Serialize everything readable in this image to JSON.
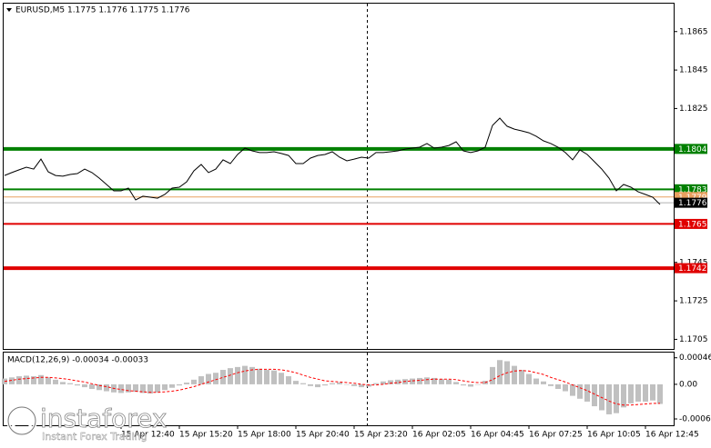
{
  "chart_data": [
    {
      "type": "line",
      "title": "EURUSD,M5  1.1775 1.1776 1.1775 1.1776",
      "categories": [
        null,
        null,
        null,
        null,
        null,
        null,
        null,
        null,
        null,
        null,
        null,
        null,
        null,
        null,
        null,
        null,
        "15 Apr 12:40",
        null,
        null,
        null,
        null,
        null,
        null,
        null,
        "15 Apr 15:20",
        null,
        null,
        null,
        null,
        null,
        null,
        null,
        "15 Apr 18:00",
        null,
        null,
        null,
        null,
        null,
        null,
        null,
        "15 Apr 20:40",
        null,
        null,
        null,
        null,
        null,
        null,
        null,
        "15 Apr 23:20",
        null,
        null,
        null,
        null,
        null,
        null,
        null,
        "16 Apr 02:05",
        null,
        null,
        null,
        null,
        null,
        null,
        null,
        "16 Apr 04:45",
        null,
        null,
        null,
        null,
        null,
        null,
        null,
        "16 Apr 07:25",
        null,
        null,
        null,
        null,
        null,
        null,
        null,
        "16 Apr 10:05",
        null,
        null,
        null,
        null,
        null,
        null,
        null,
        "16 Apr 12:45",
        null,
        null
      ],
      "series": [
        {
          "color": "#000000",
          "values": [
            1.17902,
            1.17917,
            1.17931,
            1.17945,
            1.17935,
            1.17987,
            1.17921,
            1.17902,
            1.17898,
            1.17907,
            1.17912,
            1.17935,
            1.17917,
            1.17888,
            1.17855,
            1.17822,
            1.17822,
            1.17836,
            1.17775,
            1.17794,
            1.17789,
            1.17784,
            1.17803,
            1.17836,
            1.17841,
            1.17869,
            1.17926,
            1.17959,
            1.17917,
            1.17935,
            1.17983,
            1.17964,
            1.18011,
            1.18044,
            1.1803,
            1.18021,
            1.18021,
            1.18025,
            1.18016,
            1.18006,
            1.17964,
            1.17964,
            1.17992,
            1.18006,
            1.18011,
            1.18025,
            1.17997,
            1.17978,
            1.17987,
            1.17997,
            1.17992,
            1.18021,
            1.18021,
            1.18025,
            1.1803,
            1.18039,
            1.18044,
            1.18049,
            1.18068,
            1.18044,
            1.18049,
            1.18058,
            1.18077,
            1.1803,
            1.18021,
            1.1803,
            1.18049,
            1.18162,
            1.182,
            1.18158,
            1.18143,
            1.18134,
            1.18124,
            1.18106,
            1.18082,
            1.18068,
            1.18049,
            1.18021,
            1.17983,
            1.18035,
            1.18011,
            1.17973,
            1.17935,
            1.17888,
            1.17822,
            1.17855,
            1.17841,
            1.17817,
            1.17803,
            1.17789,
            1.17751
          ]
        }
      ],
      "ylim": [
        1.17,
        1.188
      ],
      "yticks": [
        1.1865,
        1.1845,
        1.1825,
        1.1745,
        1.1725,
        1.1705
      ],
      "levels": [
        {
          "value": 1.1804,
          "color": "#008000",
          "label_color": "#008000"
        },
        {
          "value": 1.1783,
          "color": "#008000",
          "label_color": "#008000"
        },
        {
          "value": 1.1779,
          "color": "#e8a060",
          "label_color": "#e8a060"
        },
        {
          "value": 1.1776,
          "color": "#b0b0b0",
          "label_color": "#000000"
        },
        {
          "value": 1.1765,
          "color": "#e00000",
          "label_color": "#e00000"
        },
        {
          "value": 1.1742,
          "color": "#e00000",
          "label_color": "#e00000"
        }
      ]
    },
    {
      "type": "macd",
      "title": "MACD(12,26,9) -0.00034 -0.00033",
      "histogram": {
        "color": "#c0c0c0",
        "values": [
          0.0001,
          0.00012,
          0.00014,
          0.00015,
          0.00014,
          0.00016,
          0.00012,
          8e-05,
          4e-05,
          2e-05,
          -2e-05,
          -5e-05,
          -8e-05,
          -0.0001,
          -0.00012,
          -0.00014,
          -0.00015,
          -0.00014,
          -0.00013,
          -0.00015,
          -0.00016,
          -0.00014,
          -0.0001,
          -6e-05,
          -2e-05,
          3e-05,
          8e-05,
          0.00014,
          0.00018,
          0.0002,
          0.00025,
          0.00028,
          0.0003,
          0.00032,
          0.0003,
          0.00027,
          0.00025,
          0.00024,
          0.0002,
          0.00014,
          6e-05,
          2e-05,
          -3e-05,
          -5e-05,
          -2e-05,
          2e-05,
          3e-05,
          0,
          -3e-05,
          -5e-05,
          -4e-05,
          2e-05,
          5e-05,
          7e-05,
          8e-05,
          9e-05,
          0.0001,
          0.00011,
          0.00012,
          0.00011,
          9e-05,
          8e-05,
          4e-05,
          -2e-05,
          -4e-05,
          0,
          6e-05,
          0.0003,
          0.00042,
          0.0004,
          0.00032,
          0.00025,
          0.00018,
          0.0001,
          5e-05,
          -3e-05,
          -8e-05,
          -0.00012,
          -0.0002,
          -0.00025,
          -0.0003,
          -0.00038,
          -0.00045,
          -0.00052,
          -0.0005,
          -0.0004,
          -0.00033,
          -0.0003,
          -0.0003,
          -0.00028,
          -0.00034
        ]
      },
      "signal": {
        "color": "#ff0000",
        "values": [
          5e-05,
          7e-05,
          9e-05,
          0.0001,
          0.00011,
          0.00012,
          0.00012,
          0.00011,
          0.0001,
          8e-05,
          6e-05,
          4e-05,
          1e-05,
          -2e-05,
          -4e-05,
          -7e-05,
          -9e-05,
          -0.00011,
          -0.00012,
          -0.00013,
          -0.00014,
          -0.00014,
          -0.00013,
          -0.00012,
          -0.0001,
          -7e-05,
          -4e-05,
          0,
          4e-05,
          8e-05,
          0.00012,
          0.00016,
          0.0002,
          0.00023,
          0.00025,
          0.00026,
          0.00026,
          0.00026,
          0.00025,
          0.00023,
          0.0002,
          0.00016,
          0.00012,
          9e-05,
          6e-05,
          5e-05,
          4e-05,
          3e-05,
          2e-05,
          0,
          -1e-05,
          -1e-05,
          0,
          2e-05,
          3e-05,
          5e-05,
          6e-05,
          7e-05,
          8e-05,
          9e-05,
          9e-05,
          9e-05,
          8e-05,
          6e-05,
          4e-05,
          3e-05,
          3e-05,
          8e-05,
          0.00015,
          0.0002,
          0.00023,
          0.00024,
          0.00023,
          0.0002,
          0.00017,
          0.00012,
          8e-05,
          4e-05,
          -1e-05,
          -6e-05,
          -0.00011,
          -0.00017,
          -0.00023,
          -0.00029,
          -0.00034,
          -0.00036,
          -0.00036,
          -0.00035,
          -0.00034,
          -0.00033,
          -0.00033
        ]
      },
      "ylim": [
        -0.00071,
        0.00055
      ],
      "yticks": [
        0.00046,
        {
          "value": 0,
          "label": "0.00"
        },
        -0.0006
      ]
    }
  ],
  "watermark": {
    "brand": "instaforex",
    "tagline": "Instant Forex Trading"
  }
}
